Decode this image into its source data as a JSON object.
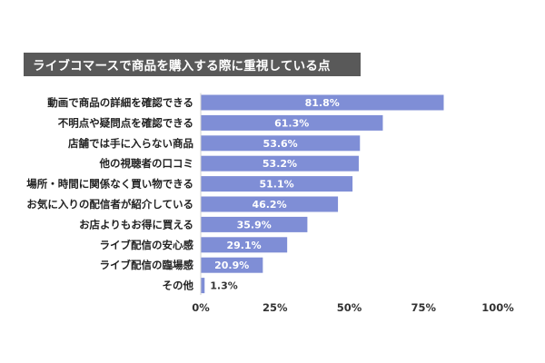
{
  "title": "ライブコマースで商品を購入する際に重視している点",
  "colors": {
    "bar": "#7f8ed6",
    "title_bg": "#595959",
    "label_inside": "#ffffff",
    "label_outside": "#333333"
  },
  "chart_data": {
    "type": "bar",
    "orientation": "horizontal",
    "categories": [
      "動画で商品の詳細を確認できる",
      "不明点や疑問点を確認できる",
      "店舗では手に入らない商品",
      "他の視聴者の口コミ",
      "場所・時間に関係なく買い物できる",
      "お気に入りの配信者が紹介している",
      "お店よりもお得に買える",
      "ライブ配信の安心感",
      "ライブ配信の臨場感",
      "その他"
    ],
    "values": [
      81.8,
      61.3,
      53.6,
      53.2,
      51.1,
      46.2,
      35.9,
      29.1,
      20.9,
      1.3
    ],
    "value_labels": [
      "81.8%",
      "61.3%",
      "53.6%",
      "53.2%",
      "51.1%",
      "46.2%",
      "35.9%",
      "29.1%",
      "20.9%",
      "1.3%"
    ],
    "xlim": [
      0,
      100
    ],
    "xticks": [
      0,
      25,
      50,
      75,
      100
    ],
    "xtick_labels": [
      "0%",
      "25%",
      "50%",
      "75%",
      "100%"
    ],
    "title": "ライブコマースで商品を購入する際に重視している点",
    "xlabel": "",
    "ylabel": "",
    "grid": false,
    "legend": "none"
  }
}
